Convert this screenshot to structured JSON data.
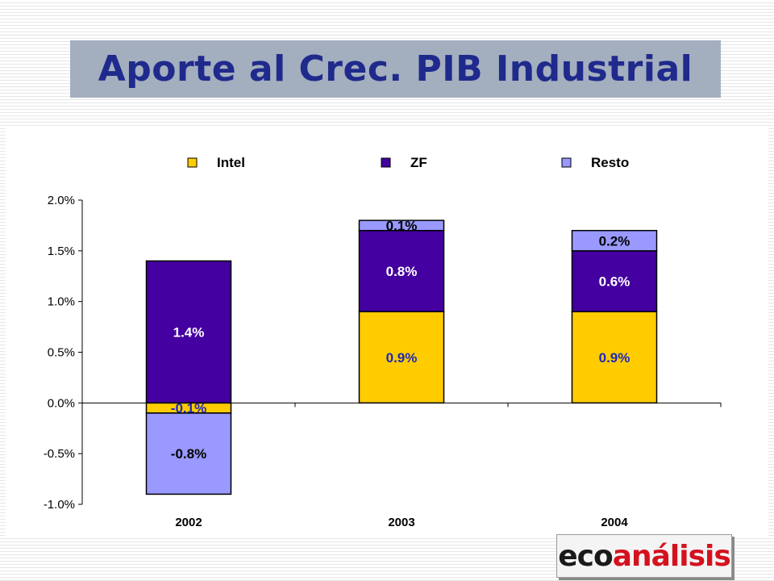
{
  "title": "Aporte al Crec. PIB Industrial",
  "logo": {
    "part1": "eco",
    "part2": "análisis"
  },
  "colors": {
    "title_bg": "#a3aebf",
    "title_text": "#1f2a8c",
    "logo_red": "#d4121e"
  },
  "chart_data": {
    "type": "bar",
    "stacked": true,
    "categories": [
      "2002",
      "2003",
      "2004"
    ],
    "series": [
      {
        "name": "Intel",
        "color": "#ffcc00",
        "label_color": "#1f2ab8",
        "values": [
          -0.1,
          0.9,
          0.9
        ],
        "labels": [
          "-0.1%",
          "0.9%",
          "0.9%"
        ]
      },
      {
        "name": "ZF",
        "color": "#4400a0",
        "label_color": "#ffffff",
        "values": [
          1.4,
          0.8,
          0.6
        ],
        "labels": [
          "1.4%",
          "0.8%",
          "0.6%"
        ]
      },
      {
        "name": "Resto",
        "color": "#9999ff",
        "label_color": "#000000",
        "values": [
          -0.8,
          0.1,
          0.2
        ],
        "labels": [
          "-0.8%",
          "0.1%",
          "0.2%"
        ]
      }
    ],
    "y_ticks": [
      2.0,
      1.5,
      1.0,
      0.5,
      0.0,
      -0.5,
      -1.0
    ],
    "y_tick_labels": [
      "2.0%",
      "1.5%",
      "1.0%",
      "0.5%",
      "0.0%",
      "-0.5%",
      "-1.0%"
    ],
    "ylim": [
      -1.0,
      2.0
    ],
    "legend_position": "top",
    "grid": false
  }
}
